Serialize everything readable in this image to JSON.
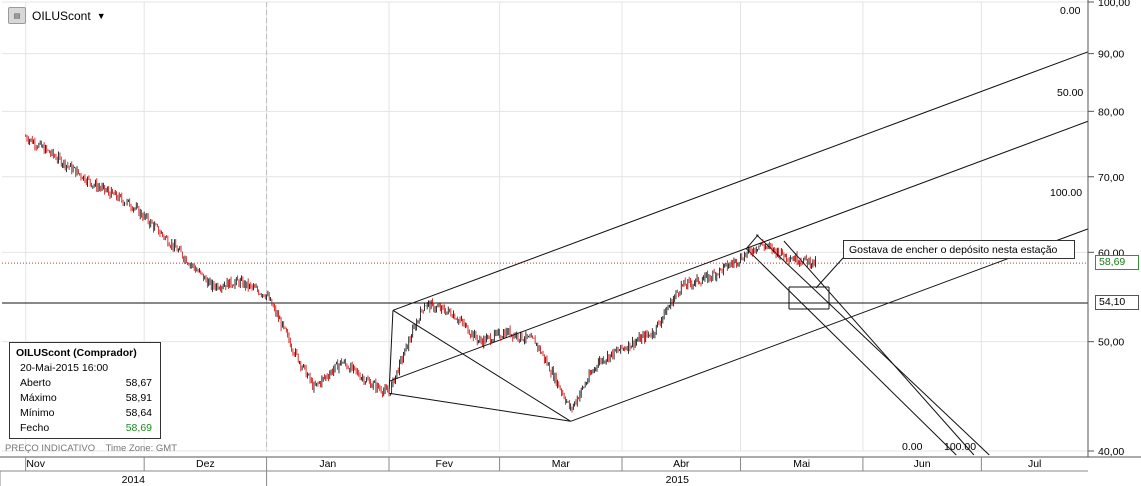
{
  "toolbar": {
    "symbol_icon": "chart-symbol-icon",
    "symbol": "OILUScont",
    "dropdown_icon": "▼"
  },
  "info_box": {
    "title": "OILUScont (Comprador)",
    "date": "20-Mai-2015 16:00",
    "rows": [
      {
        "label": "Aberto",
        "value": "58,67"
      },
      {
        "label": "Máximo",
        "value": "58,91"
      },
      {
        "label": "Mínimo",
        "value": "58,64"
      },
      {
        "label": "Fecho",
        "value": "58,69"
      }
    ]
  },
  "footer": {
    "indicative": "PREÇO INDICATIVO",
    "timezone": "Time Zone: GMT"
  },
  "annotation": "Gostava de encher o depósito nesta estação",
  "price_badges": {
    "current": "58,69",
    "level": "54,10"
  },
  "colors": {
    "candle_up": "#000000",
    "candle_down": "#cc0000",
    "current_price_line": "#cc3333",
    "price_badge_border": "#3a8c3a"
  },
  "chart_data": {
    "type": "candlestick",
    "y_axis": {
      "scale": "log",
      "range": [
        40,
        100
      ],
      "ticks": [
        "100,00",
        "90,00",
        "80,00",
        "70,00",
        "60,00",
        "50,00",
        "40,00"
      ]
    },
    "x_axis": {
      "months": [
        "Nov",
        "Dez",
        "Jan",
        "Fev",
        "Mar",
        "Abr",
        "Mai",
        "Jun",
        "Jul"
      ],
      "years": [
        "2014",
        "2015"
      ]
    },
    "horizontal_levels": [
      54.1
    ],
    "current_price": 58.69,
    "close_path": [
      {
        "date": "2014-11-01",
        "close": 76
      },
      {
        "date": "2014-11-18",
        "close": 69
      },
      {
        "date": "2014-11-28",
        "close": 66
      },
      {
        "date": "2014-12-08",
        "close": 61
      },
      {
        "date": "2014-12-18",
        "close": 56
      },
      {
        "date": "2014-12-25",
        "close": 56.5
      },
      {
        "date": "2015-01-01",
        "close": 55
      },
      {
        "date": "2015-01-08",
        "close": 49
      },
      {
        "date": "2015-01-13",
        "close": 45.5
      },
      {
        "date": "2015-01-20",
        "close": 48
      },
      {
        "date": "2015-01-27",
        "close": 46
      },
      {
        "date": "2015-02-01",
        "close": 45
      },
      {
        "date": "2015-02-10",
        "close": 54
      },
      {
        "date": "2015-02-17",
        "close": 53
      },
      {
        "date": "2015-02-24",
        "close": 50
      },
      {
        "date": "2015-03-03",
        "close": 51
      },
      {
        "date": "2015-03-10",
        "close": 50
      },
      {
        "date": "2015-03-17",
        "close": 45
      },
      {
        "date": "2015-03-19",
        "close": 43.5
      },
      {
        "date": "2015-03-26",
        "close": 48
      },
      {
        "date": "2015-04-02",
        "close": 49.5
      },
      {
        "date": "2015-04-09",
        "close": 51
      },
      {
        "date": "2015-04-16",
        "close": 56
      },
      {
        "date": "2015-04-23",
        "close": 57
      },
      {
        "date": "2015-04-30",
        "close": 59
      },
      {
        "date": "2015-05-06",
        "close": 61
      },
      {
        "date": "2015-05-13",
        "close": 59.5
      },
      {
        "date": "2015-05-20",
        "close": 58.69
      }
    ],
    "pitchfork_level_labels": [
      {
        "label": "0.00",
        "line": "upper"
      },
      {
        "label": "50.00",
        "line": "median"
      },
      {
        "label": "100.00",
        "line": "lower"
      }
    ],
    "channel_level_labels": [
      {
        "label": "0.00"
      },
      {
        "label": "100.00"
      }
    ]
  }
}
